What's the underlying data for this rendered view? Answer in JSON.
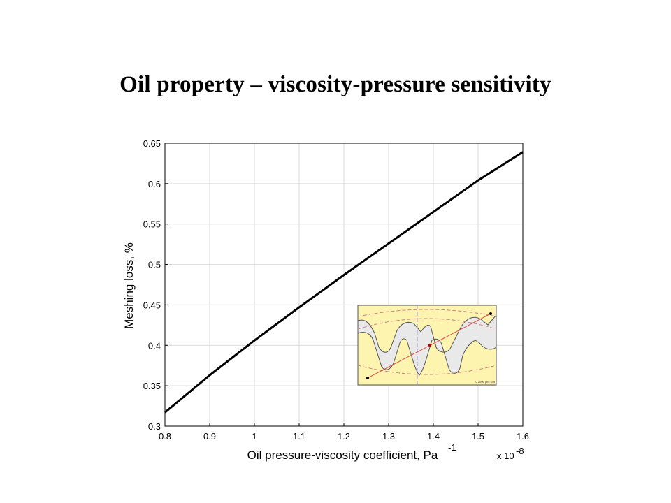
{
  "slide": {
    "title": "Oil property – viscosity-pressure sensitivity"
  },
  "chart_data": {
    "type": "line",
    "title": "",
    "xlabel": "Oil pressure-viscosity coefficient, Pa",
    "xlabel_superscript": "-1",
    "x_multiplier_label": "x 10",
    "x_multiplier_exponent": "-8",
    "ylabel": "Meshing loss, %",
    "xlim": [
      0.8,
      1.6
    ],
    "ylim": [
      0.3,
      0.65
    ],
    "x_ticks": [
      "0.8",
      "0.9",
      "1",
      "1.1",
      "1.2",
      "1.3",
      "1.4",
      "1.5",
      "1.6"
    ],
    "y_ticks": [
      "0.3",
      "0.35",
      "0.4",
      "0.45",
      "0.5",
      "0.55",
      "0.6",
      "0.65"
    ],
    "grid": true,
    "series": [
      {
        "color": "#000000",
        "x": [
          0.8,
          0.9,
          1.0,
          1.1,
          1.2,
          1.3,
          1.4,
          1.5,
          1.6
        ],
        "y": [
          0.317,
          0.363,
          0.406,
          0.447,
          0.487,
          0.526,
          0.565,
          0.604,
          0.639
        ]
      }
    ]
  },
  "inset": {
    "description_icon": "gear-mesh-diagram",
    "copyright_text": "© 2006 geo soft",
    "colors": {
      "background": "#fdf4b0",
      "tooth": "#e8e8e8",
      "line": "#e05050",
      "centerline": "#9a9ad0"
    }
  }
}
